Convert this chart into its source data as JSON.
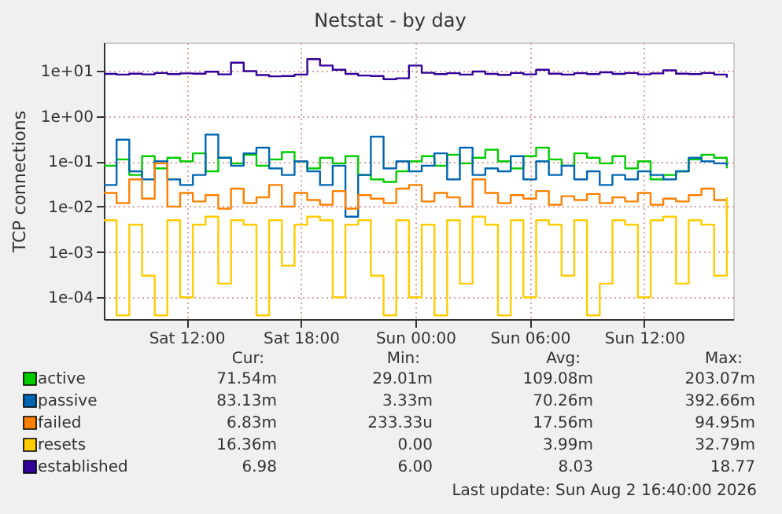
{
  "chart_data": {
    "type": "step",
    "title": "Netstat - by day",
    "ylabel": "TCP connections",
    "xlim": [
      "2026-08-01T07:40",
      "2026-08-02T16:40"
    ],
    "xticks": [
      {
        "value": "2026-08-01T12:00",
        "label": "Sat 12:00"
      },
      {
        "value": "2026-08-01T18:00",
        "label": "Sat 18:00"
      },
      {
        "value": "2026-08-02T00:00",
        "label": "Sun 00:00"
      },
      {
        "value": "2026-08-02T06:00",
        "label": "Sun 06:00"
      },
      {
        "value": "2026-08-02T12:00",
        "label": "Sun 12:00"
      }
    ],
    "log": "y",
    "ylim": [
      3.3e-05,
      42
    ],
    "yticks": [
      {
        "value": 0.0001,
        "label": "1e-04"
      },
      {
        "value": 0.001,
        "label": "1e-03"
      },
      {
        "value": 0.01,
        "label": "1e-02"
      },
      {
        "value": 0.1,
        "label": "1e-01"
      },
      {
        "value": 1,
        "label": "1e+00"
      },
      {
        "value": 10,
        "label": "1e+01"
      }
    ],
    "grid": true,
    "legend": "bottom",
    "marker": "none",
    "line_style": "solid",
    "x": [
      "2026-08-01T07:40",
      "2026-08-01T08:20",
      "2026-08-01T09:00",
      "2026-08-01T09:40",
      "2026-08-01T10:20",
      "2026-08-01T11:00",
      "2026-08-01T11:40",
      "2026-08-01T12:20",
      "2026-08-01T13:00",
      "2026-08-01T13:40",
      "2026-08-01T14:20",
      "2026-08-01T15:00",
      "2026-08-01T15:40",
      "2026-08-01T16:20",
      "2026-08-01T17:00",
      "2026-08-01T17:40",
      "2026-08-01T18:20",
      "2026-08-01T19:00",
      "2026-08-01T19:40",
      "2026-08-01T20:20",
      "2026-08-01T21:00",
      "2026-08-01T21:40",
      "2026-08-01T22:20",
      "2026-08-01T23:00",
      "2026-08-01T23:40",
      "2026-08-02T00:20",
      "2026-08-02T01:00",
      "2026-08-02T01:40",
      "2026-08-02T02:20",
      "2026-08-02T03:00",
      "2026-08-02T03:40",
      "2026-08-02T04:20",
      "2026-08-02T05:00",
      "2026-08-02T05:40",
      "2026-08-02T06:20",
      "2026-08-02T07:00",
      "2026-08-02T07:40",
      "2026-08-02T08:20",
      "2026-08-02T09:00",
      "2026-08-02T09:40",
      "2026-08-02T10:20",
      "2026-08-02T11:00",
      "2026-08-02T11:40",
      "2026-08-02T12:20",
      "2026-08-02T13:00",
      "2026-08-02T13:40",
      "2026-08-02T14:20",
      "2026-08-02T15:00",
      "2026-08-02T15:40",
      "2026-08-02T16:20"
    ],
    "series": [
      {
        "name": "active",
        "color": "#00cc00",
        "values": [
          0.08,
          0.11,
          0.05,
          0.13,
          0.07,
          0.12,
          0.1,
          0.15,
          0.06,
          0.12,
          0.09,
          0.14,
          0.08,
          0.11,
          0.16,
          0.1,
          0.07,
          0.12,
          0.09,
          0.13,
          0.05,
          0.04,
          0.035,
          0.06,
          0.1,
          0.13,
          0.08,
          0.14,
          0.09,
          0.12,
          0.18,
          0.1,
          0.07,
          0.13,
          0.2,
          0.11,
          0.08,
          0.15,
          0.12,
          0.09,
          0.13,
          0.07,
          0.1,
          0.04,
          0.05,
          0.06,
          0.11,
          0.14,
          0.12,
          0.07
        ]
      },
      {
        "name": "passive",
        "color": "#0066b3",
        "values": [
          0.03,
          0.3,
          0.06,
          0.04,
          0.1,
          0.04,
          0.03,
          0.05,
          0.39,
          0.12,
          0.08,
          0.15,
          0.2,
          0.07,
          0.05,
          0.1,
          0.06,
          0.03,
          0.08,
          0.006,
          0.05,
          0.35,
          0.07,
          0.1,
          0.06,
          0.08,
          0.15,
          0.04,
          0.2,
          0.05,
          0.07,
          0.06,
          0.13,
          0.04,
          0.1,
          0.05,
          0.08,
          0.04,
          0.06,
          0.03,
          0.05,
          0.04,
          0.06,
          0.05,
          0.04,
          0.06,
          0.12,
          0.1,
          0.09,
          0.08
        ]
      },
      {
        "name": "failed",
        "color": "#ff8000",
        "values": [
          0.02,
          0.012,
          0.04,
          0.015,
          0.09,
          0.01,
          0.02,
          0.013,
          0.018,
          0.009,
          0.025,
          0.012,
          0.016,
          0.03,
          0.01,
          0.02,
          0.014,
          0.011,
          0.022,
          0.009,
          0.018,
          0.015,
          0.012,
          0.025,
          0.03,
          0.013,
          0.02,
          0.016,
          0.01,
          0.04,
          0.02,
          0.012,
          0.018,
          0.015,
          0.022,
          0.011,
          0.017,
          0.014,
          0.019,
          0.012,
          0.016,
          0.013,
          0.02,
          0.011,
          0.015,
          0.013,
          0.018,
          0.025,
          0.014,
          0.007
        ]
      },
      {
        "name": "resets",
        "color": "#ffcc00",
        "values": [
          0.005,
          4e-05,
          0.004,
          0.0003,
          4e-05,
          0.005,
          0.0001,
          0.004,
          0.006,
          0.0002,
          0.005,
          0.004,
          4e-05,
          0.005,
          0.0005,
          0.004,
          0.006,
          0.005,
          0.0001,
          0.004,
          0.005,
          0.0003,
          4e-05,
          0.005,
          0.0001,
          0.004,
          4e-05,
          0.005,
          0.0002,
          0.006,
          0.004,
          4e-05,
          0.005,
          0.0001,
          0.005,
          0.004,
          0.0003,
          0.005,
          4e-05,
          0.0002,
          0.005,
          0.004,
          0.0001,
          0.005,
          0.006,
          0.0002,
          0.005,
          0.004,
          0.0003,
          0.016
        ]
      },
      {
        "name": "established",
        "color": "#330099",
        "values": [
          8.5,
          8.2,
          8.6,
          8.3,
          8.9,
          8.4,
          8.7,
          8.6,
          9.5,
          8.3,
          15,
          9.8,
          8.0,
          7.5,
          7.6,
          8.2,
          18,
          13,
          10.5,
          8.5,
          7.8,
          7.6,
          6.5,
          6.8,
          13,
          9,
          8.4,
          8.8,
          8.2,
          9.6,
          8.5,
          8.1,
          8.9,
          8.3,
          10.5,
          8.6,
          8.2,
          8.8,
          8.4,
          9.2,
          8.5,
          8.9,
          8.3,
          8.7,
          10.2,
          8.6,
          8.4,
          8.9,
          8.2,
          7
        ]
      }
    ],
    "annotations": [
      "Cur:",
      "Min:",
      "Avg:",
      "Max:",
      "71.54m",
      "29.01m",
      "109.08m",
      "203.07m",
      "83.13m",
      "3.33m",
      "70.26m",
      "392.66m",
      "6.83m",
      "233.33u",
      "17.56m",
      "94.95m",
      "16.36m",
      "0.00",
      "3.99m",
      "32.79m",
      "6.98",
      "6.00",
      "8.03",
      "18.77",
      "Last update: Sun Aug  2 16:40:00 2026"
    ]
  }
}
